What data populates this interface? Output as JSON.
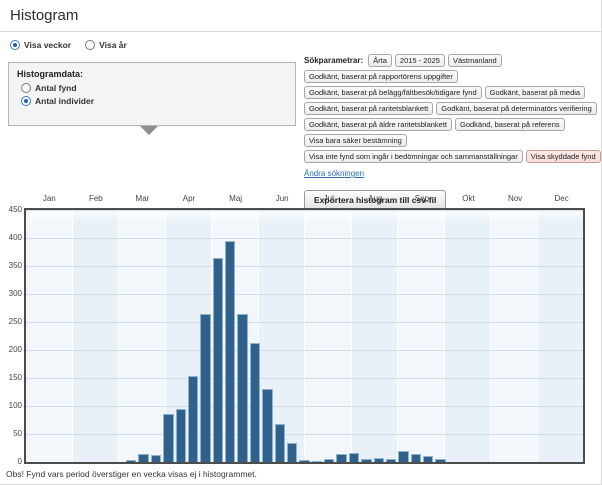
{
  "page": {
    "title": "Histogram"
  },
  "view_toggle": {
    "options": [
      {
        "label": "Visa veckor",
        "selected": true
      },
      {
        "label": "Visa år",
        "selected": false
      }
    ]
  },
  "histogram_data_box": {
    "label": "Histogramdata:",
    "options": [
      {
        "label": "Antal fynd",
        "selected": false
      },
      {
        "label": "Antal individer",
        "selected": true
      }
    ]
  },
  "search_parameters": {
    "label": "Sökparametrar:",
    "tags": [
      {
        "label": "Årta"
      },
      {
        "label": "2015 - 2025"
      },
      {
        "label": "Västmanland"
      },
      {
        "label": "Godkänt, baserat på rapportörens uppgifter"
      },
      {
        "label": "Godkänt, baserat på belägg/fältbesök/tidigare fynd"
      },
      {
        "label": "Godkänt, baserat på media"
      },
      {
        "label": "Godkänt, baserat på raritetsblankett"
      },
      {
        "label": "Godkänt, baserat på determinatörs verifiering"
      },
      {
        "label": "Godkänt, baserat på äldre raritetsblankett"
      },
      {
        "label": "Godkänd, baserat på referens"
      },
      {
        "label": "Visa bara säker bestämning"
      },
      {
        "label": "Visa inte fynd som ingår i bedömningar och sammanställningar"
      },
      {
        "label": "Visa skyddade fynd",
        "highlight": true
      }
    ],
    "edit_link": "Ändra sökningen"
  },
  "export_button_label": "Exportera histogram till csv-fil",
  "footnote": "Obs! Fynd vars period överstiger en vecka visas ej i histogrammet.",
  "chart_data": {
    "type": "bar",
    "title": "",
    "xlabel": "",
    "ylabel": "",
    "x_unit": "week-of-year bins (shown under month labels)",
    "months": [
      "Jan",
      "Feb",
      "Mar",
      "Apr",
      "Maj",
      "Jun",
      "Jul",
      "Aug",
      "Sep",
      "Okt",
      "Nov",
      "Dec"
    ],
    "y_ticks": [
      450,
      400,
      350,
      300,
      250,
      200,
      150,
      100,
      50,
      0
    ],
    "ylim": [
      0,
      450
    ],
    "grid": true,
    "legend": "none",
    "bar_color": "#30618a",
    "values": [
      0,
      0,
      0,
      0,
      0,
      0,
      0,
      0,
      4,
      15,
      12,
      85,
      95,
      153,
      264,
      365,
      395,
      265,
      212,
      130,
      67,
      34,
      4,
      2,
      6,
      15,
      16,
      5,
      8,
      5,
      20,
      15,
      10,
      6,
      0,
      0,
      0,
      0,
      0,
      0,
      0,
      0,
      0,
      0,
      0
    ]
  }
}
